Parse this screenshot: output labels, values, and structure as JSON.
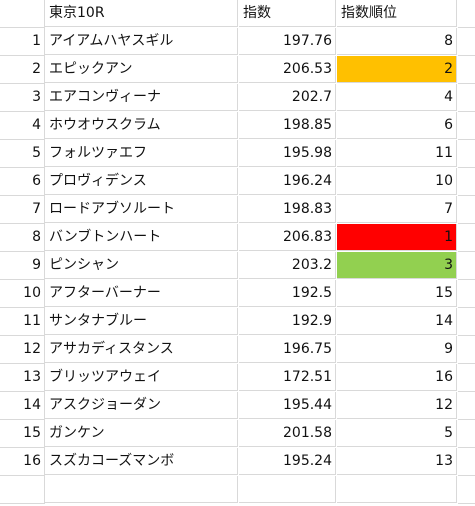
{
  "header": {
    "row_num": "",
    "name": "東京10R",
    "index": "指数",
    "rank": "指数順位"
  },
  "rows": [
    {
      "num": "1",
      "name": "アイアムハヤスギル",
      "index": "197.76",
      "rank": "8",
      "highlight": ""
    },
    {
      "num": "2",
      "name": "エピックアン",
      "index": "206.53",
      "rank": "2",
      "highlight": "#FFC000"
    },
    {
      "num": "3",
      "name": "エアコンヴィーナ",
      "index": "202.7",
      "rank": "4",
      "highlight": ""
    },
    {
      "num": "4",
      "name": "ホウオウスクラム",
      "index": "198.85",
      "rank": "6",
      "highlight": ""
    },
    {
      "num": "5",
      "name": "フォルツァエフ",
      "index": "195.98",
      "rank": "11",
      "highlight": ""
    },
    {
      "num": "6",
      "name": "プロヴィデンス",
      "index": "196.24",
      "rank": "10",
      "highlight": ""
    },
    {
      "num": "7",
      "name": "ロードアブソルート",
      "index": "198.83",
      "rank": "7",
      "highlight": ""
    },
    {
      "num": "8",
      "name": "バンブトンハート",
      "index": "206.83",
      "rank": "1",
      "highlight": "#FF0000"
    },
    {
      "num": "9",
      "name": "ピンシャン",
      "index": "203.2",
      "rank": "3",
      "highlight": "#92D050"
    },
    {
      "num": "10",
      "name": "アフターバーナー",
      "index": "192.5",
      "rank": "15",
      "highlight": ""
    },
    {
      "num": "11",
      "name": "サンタナブルー",
      "index": "192.9",
      "rank": "14",
      "highlight": ""
    },
    {
      "num": "12",
      "name": "アサカディスタンス",
      "index": "196.75",
      "rank": "9",
      "highlight": ""
    },
    {
      "num": "13",
      "name": "ブリッツアウェイ",
      "index": "172.51",
      "rank": "16",
      "highlight": ""
    },
    {
      "num": "14",
      "name": "アスクジョーダン",
      "index": "195.44",
      "rank": "12",
      "highlight": ""
    },
    {
      "num": "15",
      "name": "ガンケン",
      "index": "201.58",
      "rank": "5",
      "highlight": ""
    },
    {
      "num": "16",
      "name": "スズカコーズマンボ",
      "index": "195.24",
      "rank": "13",
      "highlight": ""
    }
  ],
  "colors": {
    "gridline": "#d9d9d9",
    "rank1": "#FF0000",
    "rank2": "#FFC000",
    "rank3": "#92D050"
  }
}
